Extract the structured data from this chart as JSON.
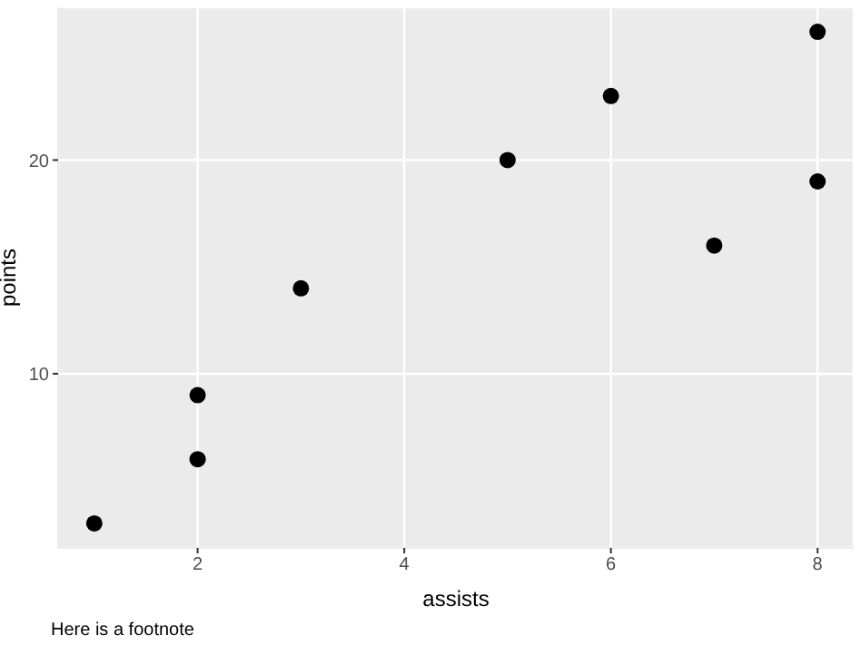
{
  "chart_data": {
    "type": "scatter",
    "xlabel": "assists",
    "ylabel": "points",
    "annotations": [
      "Here is a footnote"
    ],
    "x": [
      1,
      2,
      2,
      3,
      5,
      6,
      7,
      8,
      8
    ],
    "values": [
      3,
      6,
      9,
      14,
      20,
      23,
      16,
      26,
      19
    ],
    "color": "#000000",
    "marker": "circle",
    "xlim": [
      0.65,
      8.35
    ],
    "xticks": [
      2,
      4,
      6,
      8
    ],
    "ylim": [
      1.85,
      27.15
    ],
    "yticks": [
      10,
      20
    ],
    "grid": true
  }
}
